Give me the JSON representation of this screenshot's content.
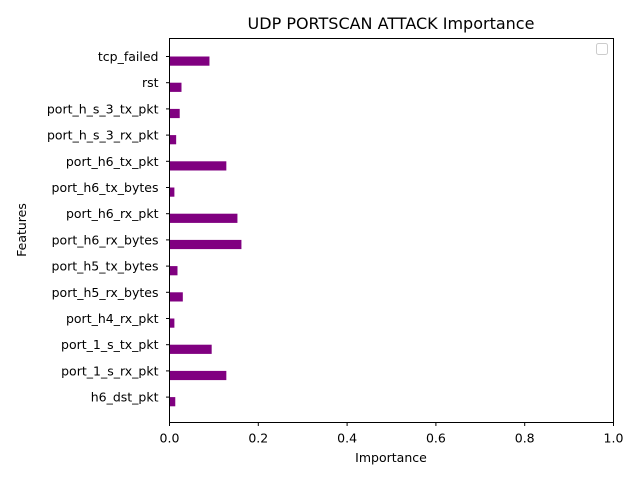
{
  "chart_data": {
    "type": "bar",
    "orientation": "horizontal",
    "title": "UDP PORTSCAN ATTACK Importance",
    "xlabel": "Importance",
    "ylabel": "Features",
    "xlim": [
      0,
      1
    ],
    "xticks": [
      "0.0",
      "0.2",
      "0.4",
      "0.6",
      "0.8",
      "1.0"
    ],
    "grid": false,
    "legend": "top-right, empty",
    "bar_color": "#800080",
    "categories": [
      "tcp_failed",
      "rst",
      "port_h_s_3_tx_pkt",
      "port_h_s_3_rx_pkt",
      "port_h6_tx_pkt",
      "port_h6_tx_bytes",
      "port_h6_rx_pkt",
      "port_h6_rx_bytes",
      "port_h5_tx_bytes",
      "port_h5_rx_bytes",
      "port_h4_rx_pkt",
      "port_1_s_tx_pkt",
      "port_1_s_rx_pkt",
      "h6_dst_pkt"
    ],
    "values": [
      0.09,
      0.027,
      0.023,
      0.015,
      0.128,
      0.011,
      0.153,
      0.162,
      0.018,
      0.03,
      0.011,
      0.095,
      0.128,
      0.013
    ]
  }
}
